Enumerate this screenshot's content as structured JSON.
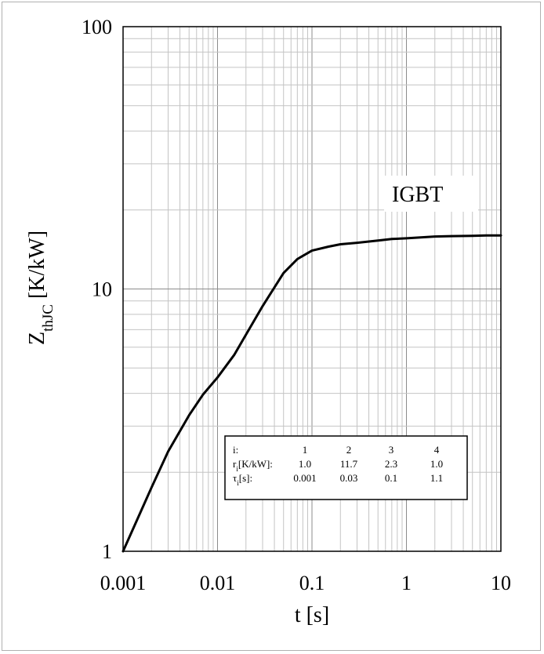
{
  "chart_data": {
    "type": "line",
    "title": "",
    "xlabel": "t [s]",
    "ylabel": {
      "main": "Z",
      "sub": "thJC",
      "unit": " [K/kW]"
    },
    "x_scale": "log",
    "y_scale": "log",
    "xlim": [
      0.001,
      10
    ],
    "ylim": [
      1,
      100
    ],
    "x_ticks": [
      "0.001",
      "0.01",
      "0.1",
      "1",
      "10"
    ],
    "y_ticks": [
      "1",
      "10",
      "100"
    ],
    "grid": true,
    "series": [
      {
        "name": "IGBT",
        "x": [
          0.001,
          0.002,
          0.003,
          0.005,
          0.007,
          0.01,
          0.015,
          0.02,
          0.03,
          0.05,
          0.07,
          0.1,
          0.15,
          0.2,
          0.3,
          0.5,
          0.7,
          1,
          2,
          3,
          5,
          7,
          10
        ],
        "values": [
          1.0,
          1.75,
          2.4,
          3.3,
          3.95,
          4.6,
          5.6,
          6.7,
          8.6,
          11.5,
          13.0,
          14.0,
          14.5,
          14.8,
          15.0,
          15.3,
          15.5,
          15.6,
          15.85,
          15.9,
          15.95,
          16.0,
          16.0
        ]
      }
    ],
    "annotations": [
      {
        "text": "IGBT"
      }
    ],
    "parameter_table": {
      "rows": [
        {
          "label": "i:",
          "label_main": "",
          "label_sub": "",
          "label_rest": "",
          "values": [
            "1",
            "2",
            "3",
            "4"
          ]
        },
        {
          "label": "",
          "label_main": "r",
          "label_sub": "i",
          "label_rest": "[K/kW]:",
          "values": [
            "1.0",
            "11.7",
            "2.3",
            "1.0"
          ]
        },
        {
          "label": "",
          "label_main": "τ",
          "label_sub": "i",
          "label_rest": "[s]:",
          "values": [
            "0.001",
            "0.03",
            "0.1",
            "1.1"
          ]
        }
      ]
    }
  }
}
